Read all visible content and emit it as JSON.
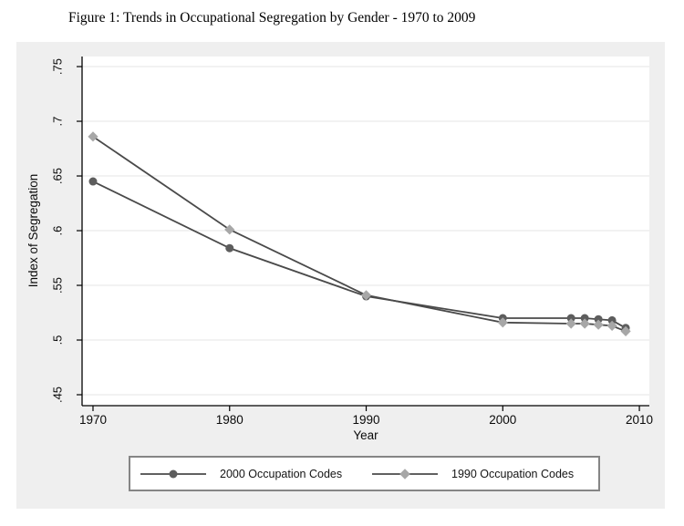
{
  "figure_title": "Figure 1: Trends in Occupational Segregation by Gender - 1970 to 2009",
  "colors": {
    "page_background": "#ffffff",
    "graph_region_background": "#efefef",
    "plot_background": "#ffffff",
    "gridline": "#e6e6e6",
    "axis": "#000000",
    "text": "#0a0a0a",
    "legend_border": "#858585",
    "legend_background": "#ffffff"
  },
  "chart_data": {
    "type": "line",
    "title": "Figure 1: Trends in Occupational Segregation by Gender - 1970 to 2009",
    "xlabel": "Year",
    "ylabel": "Index of Segregation",
    "xlim": [
      1969.2,
      2010.73
    ],
    "ylim": [
      0.44,
      0.7592
    ],
    "xticks": [
      1970,
      1980,
      1990,
      2000,
      2010
    ],
    "xtick_labels": [
      "1970",
      "1980",
      "1990",
      "2000",
      "2010"
    ],
    "yticks": [
      0.45,
      0.5,
      0.55,
      0.6,
      0.65,
      0.7,
      0.75
    ],
    "ytick_labels": [
      ".45",
      ".5",
      ".55",
      ".6",
      ".65",
      ".7",
      ".75"
    ],
    "ytick_label_rotation": -90,
    "grid": "horizontal",
    "legend_position": "bottom",
    "x": [
      1970,
      1980,
      1990,
      2000,
      2005,
      2006,
      2007,
      2008,
      2009
    ],
    "series": [
      {
        "name": "2000 Occupation Codes",
        "marker": "circle",
        "marker_color": "#5d5d5d",
        "line_color": "#4a4a4a",
        "values": [
          0.645,
          0.584,
          0.54,
          0.52,
          0.52,
          0.52,
          0.519,
          0.518,
          0.511
        ]
      },
      {
        "name": "1990 Occupation Codes",
        "marker": "diamond",
        "marker_color": "#a7a7a7",
        "line_color": "#4a4a4a",
        "values": [
          0.686,
          0.601,
          0.541,
          0.516,
          0.515,
          0.515,
          0.514,
          0.513,
          0.508
        ]
      }
    ]
  },
  "legend": {
    "entries": [
      {
        "label": "2000 Occupation Codes"
      },
      {
        "label": "1990 Occupation Codes"
      }
    ]
  }
}
